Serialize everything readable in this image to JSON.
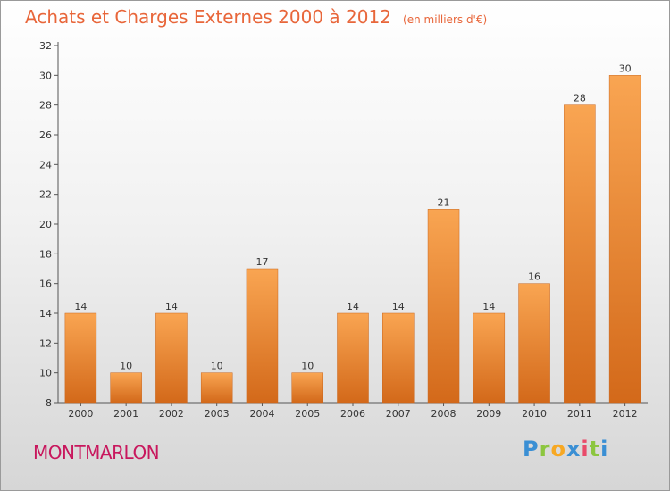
{
  "header": {
    "title": "Achats et Charges Externes 2000 à 2012",
    "subtitle": "(en milliers d'€)"
  },
  "commune": "MONTMARLON",
  "logo": {
    "text": "Proxiti",
    "letters": [
      "P",
      "r",
      "o",
      "x",
      "i",
      "t",
      "i"
    ],
    "colors": [
      "#3a8fd4",
      "#8cc63f",
      "#f7a823",
      "#3a8fd4",
      "#e94b6a",
      "#8cc63f",
      "#3a8fd4"
    ]
  },
  "colors": {
    "bar_light": "#f9a552",
    "bar_dark": "#d3691a",
    "title": "#e8663a",
    "commune": "#c8175d"
  },
  "chart_data": {
    "type": "bar",
    "categories": [
      "2000",
      "2001",
      "2002",
      "2003",
      "2004",
      "2005",
      "2006",
      "2007",
      "2008",
      "2009",
      "2010",
      "2011",
      "2012"
    ],
    "values": [
      14,
      10,
      14,
      10,
      17,
      10,
      14,
      14,
      21,
      14,
      16,
      28,
      30
    ],
    "data_labels": [
      "14",
      "10",
      "14",
      "10",
      "17",
      "10",
      "14",
      "14",
      "21",
      "14",
      "16",
      "28",
      "30"
    ],
    "yticks": [
      "8",
      "10",
      "12",
      "14",
      "16",
      "18",
      "20",
      "22",
      "24",
      "26",
      "28",
      "30",
      "32"
    ],
    "ylim": [
      8,
      32
    ],
    "grid": false,
    "legend": "none"
  }
}
